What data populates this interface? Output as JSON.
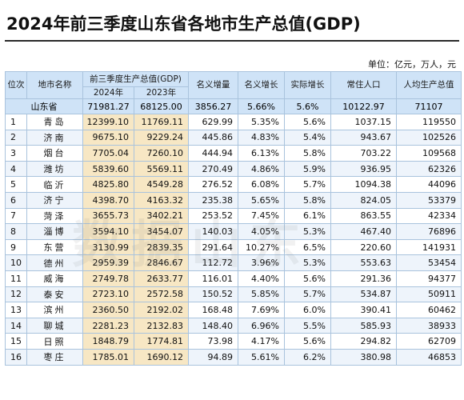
{
  "title": "2024年前三季度山东省各地市生产总值(GDP)",
  "unit": "单位：亿元，万人，元",
  "watermark": "数据山东",
  "headers": {
    "rank": "位次",
    "city": "地市名称",
    "gdp_group": "前三季度生产总值(GDP)",
    "gdp_2024": "2024年",
    "gdp_2023": "2023年",
    "nominal_increase": "名义增量",
    "nominal_growth": "名义增长",
    "real_growth": "实际增长",
    "population": "常住人口",
    "per_capita": "人均生产总值"
  },
  "province": {
    "name": "山东省",
    "gdp_2024": "71981.27",
    "gdp_2023": "68125.00",
    "nominal_increase": "3856.27",
    "nominal_growth": "5.66%",
    "real_growth": "5.6%",
    "population": "10122.97",
    "per_capita": "71107"
  },
  "rows": [
    {
      "rank": "1",
      "city": "青岛",
      "gdp_2024": "12399.10",
      "gdp_2023": "11769.11",
      "inc": "629.99",
      "ng": "5.35%",
      "rg": "5.6%",
      "pop": "1037.15",
      "pc": "119550"
    },
    {
      "rank": "2",
      "city": "济南",
      "gdp_2024": "9675.10",
      "gdp_2023": "9229.24",
      "inc": "445.86",
      "ng": "4.83%",
      "rg": "5.4%",
      "pop": "943.67",
      "pc": "102526"
    },
    {
      "rank": "3",
      "city": "烟台",
      "gdp_2024": "7705.04",
      "gdp_2023": "7260.10",
      "inc": "444.94",
      "ng": "6.13%",
      "rg": "5.8%",
      "pop": "703.22",
      "pc": "109568"
    },
    {
      "rank": "4",
      "city": "潍坊",
      "gdp_2024": "5839.60",
      "gdp_2023": "5569.11",
      "inc": "270.49",
      "ng": "4.86%",
      "rg": "5.9%",
      "pop": "936.95",
      "pc": "62326"
    },
    {
      "rank": "5",
      "city": "临沂",
      "gdp_2024": "4825.80",
      "gdp_2023": "4549.28",
      "inc": "276.52",
      "ng": "6.08%",
      "rg": "5.7%",
      "pop": "1094.38",
      "pc": "44096"
    },
    {
      "rank": "6",
      "city": "济宁",
      "gdp_2024": "4398.70",
      "gdp_2023": "4163.32",
      "inc": "235.38",
      "ng": "5.65%",
      "rg": "5.8%",
      "pop": "824.05",
      "pc": "53379"
    },
    {
      "rank": "7",
      "city": "菏泽",
      "gdp_2024": "3655.73",
      "gdp_2023": "3402.21",
      "inc": "253.52",
      "ng": "7.45%",
      "rg": "6.1%",
      "pop": "863.55",
      "pc": "42334"
    },
    {
      "rank": "8",
      "city": "淄博",
      "gdp_2024": "3594.10",
      "gdp_2023": "3454.07",
      "inc": "140.03",
      "ng": "4.05%",
      "rg": "5.3%",
      "pop": "467.40",
      "pc": "76896"
    },
    {
      "rank": "9",
      "city": "东营",
      "gdp_2024": "3130.99",
      "gdp_2023": "2839.35",
      "inc": "291.64",
      "ng": "10.27%",
      "rg": "6.5%",
      "pop": "220.60",
      "pc": "141931"
    },
    {
      "rank": "10",
      "city": "德州",
      "gdp_2024": "2959.39",
      "gdp_2023": "2846.67",
      "inc": "112.72",
      "ng": "3.96%",
      "rg": "5.3%",
      "pop": "553.63",
      "pc": "53454"
    },
    {
      "rank": "11",
      "city": "威海",
      "gdp_2024": "2749.78",
      "gdp_2023": "2633.77",
      "inc": "116.01",
      "ng": "4.40%",
      "rg": "5.6%",
      "pop": "291.36",
      "pc": "94377"
    },
    {
      "rank": "12",
      "city": "泰安",
      "gdp_2024": "2723.10",
      "gdp_2023": "2572.58",
      "inc": "150.52",
      "ng": "5.85%",
      "rg": "5.7%",
      "pop": "534.87",
      "pc": "50911"
    },
    {
      "rank": "13",
      "city": "滨州",
      "gdp_2024": "2360.50",
      "gdp_2023": "2192.02",
      "inc": "168.48",
      "ng": "7.69%",
      "rg": "6.0%",
      "pop": "390.41",
      "pc": "60462"
    },
    {
      "rank": "14",
      "city": "聊城",
      "gdp_2024": "2281.23",
      "gdp_2023": "2132.83",
      "inc": "148.40",
      "ng": "6.96%",
      "rg": "5.5%",
      "pop": "585.93",
      "pc": "38933"
    },
    {
      "rank": "15",
      "city": "日照",
      "gdp_2024": "1848.79",
      "gdp_2023": "1774.81",
      "inc": "73.98",
      "ng": "4.17%",
      "rg": "5.6%",
      "pop": "294.82",
      "pc": "62709"
    },
    {
      "rank": "16",
      "city": "枣庄",
      "gdp_2024": "1785.01",
      "gdp_2023": "1690.12",
      "inc": "94.89",
      "ng": "5.61%",
      "rg": "6.2%",
      "pop": "380.98",
      "pc": "46853"
    }
  ]
}
